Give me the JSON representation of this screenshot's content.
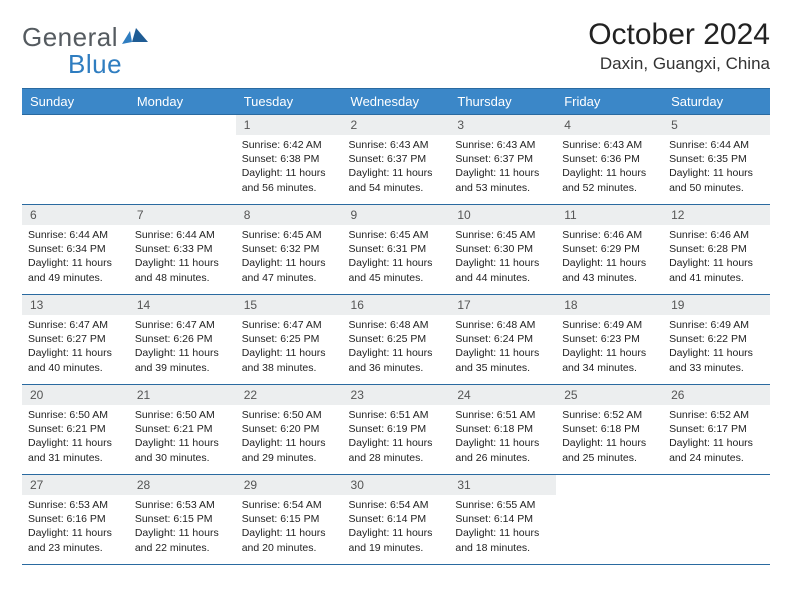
{
  "logo": {
    "word1": "General",
    "word2": "Blue"
  },
  "title": "October 2024",
  "location": "Daxin, Guangxi, China",
  "colors": {
    "header_bg": "#3b87c8",
    "header_text": "#ffffff",
    "rule": "#2a6aa0",
    "daynum_bg": "#eceeef",
    "daynum_text": "#555555",
    "body_text": "#222222",
    "logo_gray": "#555b60",
    "logo_blue": "#2f7dc0"
  },
  "weekdays": [
    "Sunday",
    "Monday",
    "Tuesday",
    "Wednesday",
    "Thursday",
    "Friday",
    "Saturday"
  ],
  "firstWeekday": 2,
  "days": [
    {
      "n": 1,
      "sr": "6:42 AM",
      "ss": "6:38 PM",
      "dl": "11 hours and 56 minutes."
    },
    {
      "n": 2,
      "sr": "6:43 AM",
      "ss": "6:37 PM",
      "dl": "11 hours and 54 minutes."
    },
    {
      "n": 3,
      "sr": "6:43 AM",
      "ss": "6:37 PM",
      "dl": "11 hours and 53 minutes."
    },
    {
      "n": 4,
      "sr": "6:43 AM",
      "ss": "6:36 PM",
      "dl": "11 hours and 52 minutes."
    },
    {
      "n": 5,
      "sr": "6:44 AM",
      "ss": "6:35 PM",
      "dl": "11 hours and 50 minutes."
    },
    {
      "n": 6,
      "sr": "6:44 AM",
      "ss": "6:34 PM",
      "dl": "11 hours and 49 minutes."
    },
    {
      "n": 7,
      "sr": "6:44 AM",
      "ss": "6:33 PM",
      "dl": "11 hours and 48 minutes."
    },
    {
      "n": 8,
      "sr": "6:45 AM",
      "ss": "6:32 PM",
      "dl": "11 hours and 47 minutes."
    },
    {
      "n": 9,
      "sr": "6:45 AM",
      "ss": "6:31 PM",
      "dl": "11 hours and 45 minutes."
    },
    {
      "n": 10,
      "sr": "6:45 AM",
      "ss": "6:30 PM",
      "dl": "11 hours and 44 minutes."
    },
    {
      "n": 11,
      "sr": "6:46 AM",
      "ss": "6:29 PM",
      "dl": "11 hours and 43 minutes."
    },
    {
      "n": 12,
      "sr": "6:46 AM",
      "ss": "6:28 PM",
      "dl": "11 hours and 41 minutes."
    },
    {
      "n": 13,
      "sr": "6:47 AM",
      "ss": "6:27 PM",
      "dl": "11 hours and 40 minutes."
    },
    {
      "n": 14,
      "sr": "6:47 AM",
      "ss": "6:26 PM",
      "dl": "11 hours and 39 minutes."
    },
    {
      "n": 15,
      "sr": "6:47 AM",
      "ss": "6:25 PM",
      "dl": "11 hours and 38 minutes."
    },
    {
      "n": 16,
      "sr": "6:48 AM",
      "ss": "6:25 PM",
      "dl": "11 hours and 36 minutes."
    },
    {
      "n": 17,
      "sr": "6:48 AM",
      "ss": "6:24 PM",
      "dl": "11 hours and 35 minutes."
    },
    {
      "n": 18,
      "sr": "6:49 AM",
      "ss": "6:23 PM",
      "dl": "11 hours and 34 minutes."
    },
    {
      "n": 19,
      "sr": "6:49 AM",
      "ss": "6:22 PM",
      "dl": "11 hours and 33 minutes."
    },
    {
      "n": 20,
      "sr": "6:50 AM",
      "ss": "6:21 PM",
      "dl": "11 hours and 31 minutes."
    },
    {
      "n": 21,
      "sr": "6:50 AM",
      "ss": "6:21 PM",
      "dl": "11 hours and 30 minutes."
    },
    {
      "n": 22,
      "sr": "6:50 AM",
      "ss": "6:20 PM",
      "dl": "11 hours and 29 minutes."
    },
    {
      "n": 23,
      "sr": "6:51 AM",
      "ss": "6:19 PM",
      "dl": "11 hours and 28 minutes."
    },
    {
      "n": 24,
      "sr": "6:51 AM",
      "ss": "6:18 PM",
      "dl": "11 hours and 26 minutes."
    },
    {
      "n": 25,
      "sr": "6:52 AM",
      "ss": "6:18 PM",
      "dl": "11 hours and 25 minutes."
    },
    {
      "n": 26,
      "sr": "6:52 AM",
      "ss": "6:17 PM",
      "dl": "11 hours and 24 minutes."
    },
    {
      "n": 27,
      "sr": "6:53 AM",
      "ss": "6:16 PM",
      "dl": "11 hours and 23 minutes."
    },
    {
      "n": 28,
      "sr": "6:53 AM",
      "ss": "6:15 PM",
      "dl": "11 hours and 22 minutes."
    },
    {
      "n": 29,
      "sr": "6:54 AM",
      "ss": "6:15 PM",
      "dl": "11 hours and 20 minutes."
    },
    {
      "n": 30,
      "sr": "6:54 AM",
      "ss": "6:14 PM",
      "dl": "11 hours and 19 minutes."
    },
    {
      "n": 31,
      "sr": "6:55 AM",
      "ss": "6:14 PM",
      "dl": "11 hours and 18 minutes."
    }
  ],
  "labels": {
    "sunrise": "Sunrise:",
    "sunset": "Sunset:",
    "daylight": "Daylight:"
  }
}
